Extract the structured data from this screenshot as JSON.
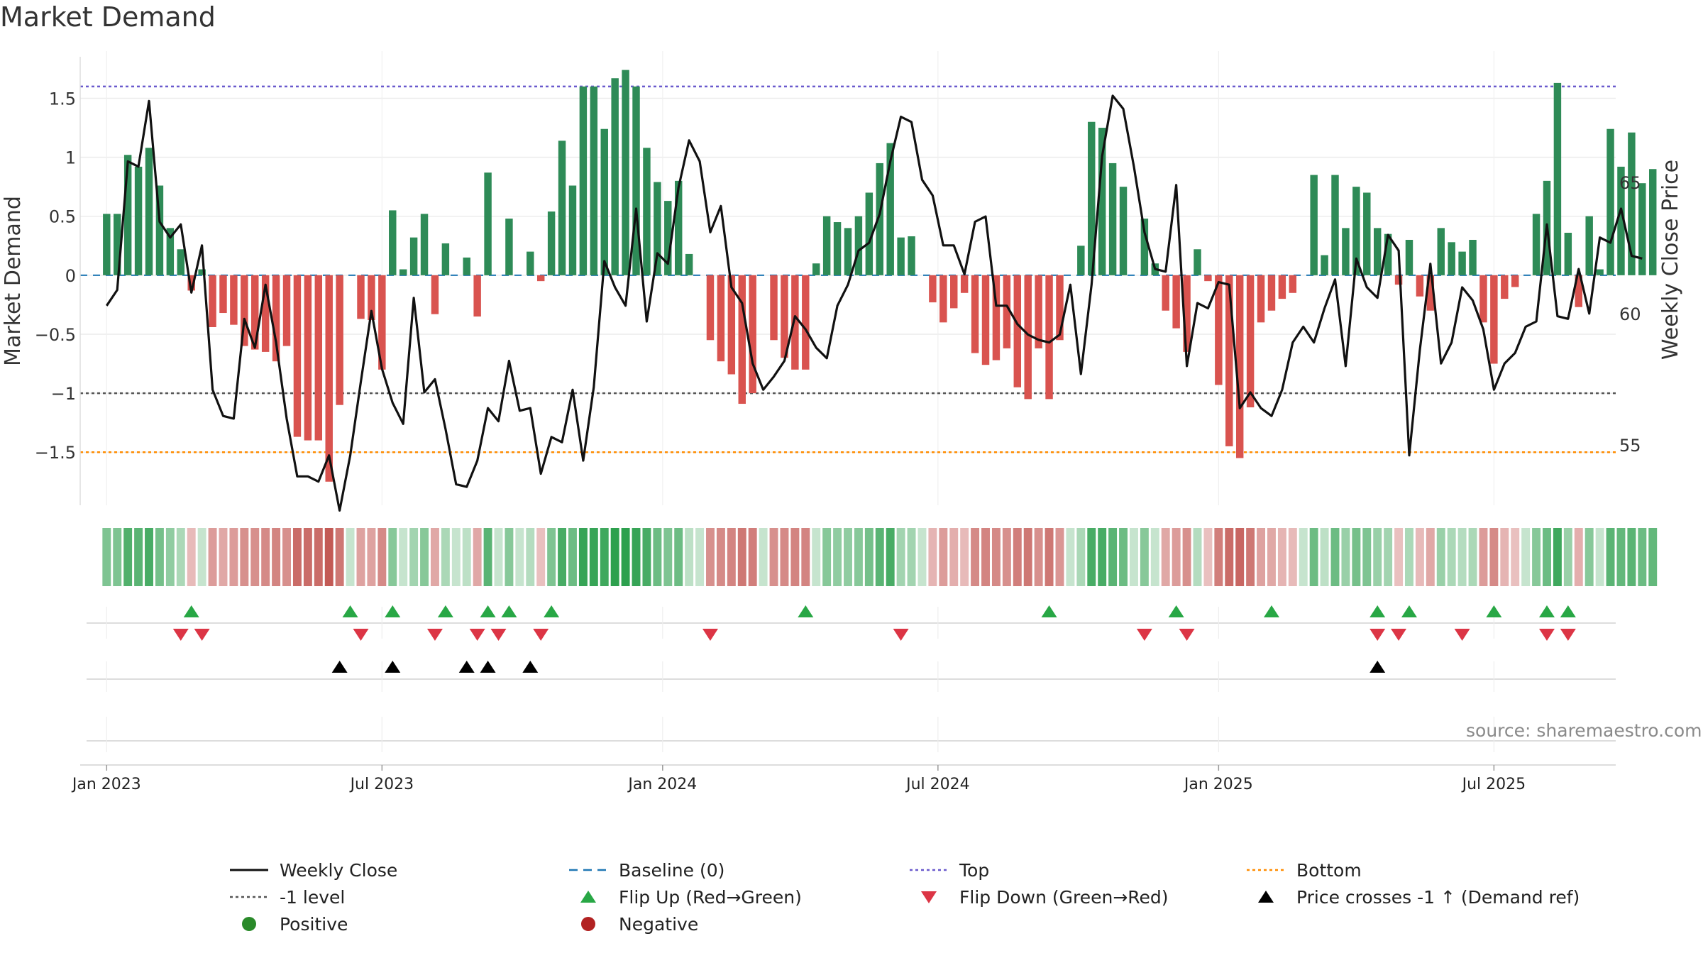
{
  "title": "Market Demand",
  "source": "source: sharemaestro.com",
  "colors": {
    "positive_bar": "#2e8b57",
    "negative_bar": "#d9534f",
    "weekly_close": "#111111",
    "baseline": "#1f77b4",
    "top": "#6a5acd",
    "bottom": "#ff8c00",
    "minus_one": "#555555",
    "flip_up": "#28a745",
    "flip_down": "#dc3545",
    "price_cross": "#000000",
    "positive_dot": "#2a8a2a",
    "negative_dot": "#b22222"
  },
  "legend": [
    {
      "label": "Weekly Close",
      "icon": "solid-line",
      "color": "#111111"
    },
    {
      "label": "Baseline (0)",
      "icon": "dashed-line",
      "color": "#1f77b4"
    },
    {
      "label": "Top",
      "icon": "dotted-line",
      "color": "#6a5acd"
    },
    {
      "label": "Bottom",
      "icon": "dotted-line",
      "color": "#ff8c00"
    },
    {
      "label": "-1 level",
      "icon": "dotted-line",
      "color": "#555555"
    },
    {
      "label": "Flip Up (Red→Green)",
      "icon": "triangle-up",
      "color": "#28a745"
    },
    {
      "label": "Flip Down (Green→Red)",
      "icon": "triangle-down",
      "color": "#dc3545"
    },
    {
      "label": "Price crosses -1 ↑ (Demand ref)",
      "icon": "triangle-up",
      "color": "#000000"
    },
    {
      "label": "Positive",
      "icon": "dot",
      "color": "#2a8a2a"
    },
    {
      "label": "Negative",
      "icon": "dot",
      "color": "#b22222"
    }
  ],
  "chart_data": {
    "type": "bar",
    "title": "Market Demand",
    "ylabel_left": "Market Demand",
    "ylabel_right": "Weekly Close Price",
    "ylim_left": [
      -1.95,
      1.9
    ],
    "ylim_right": [
      52.7,
      70
    ],
    "yticks_left": [
      1.5,
      1,
      0.5,
      0,
      -0.5,
      -1,
      -1.5
    ],
    "ytick_labels_left": [
      "1.5",
      "1",
      "0.5",
      "0",
      "−0.5",
      "−1",
      "−1.5"
    ],
    "yticks_right": [
      65,
      60,
      55
    ],
    "ytick_labels_right": [
      "65",
      "60",
      "55"
    ],
    "x_start_index": -2.5,
    "x_end_index": 142.5,
    "x_ticks": [
      {
        "label": "Jan 2023",
        "index": 0
      },
      {
        "label": "Jul 2023",
        "index": 26
      },
      {
        "label": "Jan 2024",
        "index": 52.5
      },
      {
        "label": "Jul 2024",
        "index": 78.5
      },
      {
        "label": "Jan 2025",
        "index": 105
      },
      {
        "label": "Jul 2025",
        "index": 131
      }
    ],
    "reference_lines": {
      "top": 1.6,
      "bottom": -1.5,
      "minus_one": -1.0,
      "baseline": 0
    },
    "demand": [
      0.52,
      0.52,
      1.02,
      0.92,
      1.08,
      0.76,
      0.4,
      0.22,
      -0.13,
      0.05,
      -0.44,
      -0.32,
      -0.42,
      -0.6,
      -0.63,
      -0.65,
      -0.73,
      -0.6,
      -1.37,
      -1.4,
      -1.4,
      -1.75,
      -1.1,
      0.0,
      -0.37,
      -0.38,
      -0.8,
      0.55,
      0.05,
      0.32,
      0.52,
      -0.33,
      0.27,
      0.0,
      0.15,
      -0.35,
      0.87,
      0.0,
      0.48,
      0.0,
      0.2,
      -0.05,
      0.54,
      1.14,
      0.76,
      1.6,
      1.6,
      1.24,
      1.67,
      1.74,
      1.6,
      1.08,
      0.79,
      0.63,
      0.8,
      0.18,
      0.0,
      -0.55,
      -0.73,
      -0.84,
      -1.09,
      -1.0,
      0.0,
      -0.55,
      -0.7,
      -0.8,
      -0.8,
      0.1,
      0.5,
      0.45,
      0.4,
      0.5,
      0.7,
      0.95,
      1.12,
      0.32,
      0.33,
      0.0,
      -0.23,
      -0.4,
      -0.28,
      -0.15,
      -0.66,
      -0.76,
      -0.72,
      -0.62,
      -0.95,
      -1.05,
      -0.62,
      -1.05,
      -0.55,
      0.0,
      0.25,
      1.3,
      1.25,
      0.95,
      0.75,
      0.0,
      0.48,
      0.1,
      -0.3,
      -0.45,
      -0.65,
      0.22,
      -0.05,
      -0.93,
      -1.45,
      -1.55,
      -1.12,
      -0.4,
      -0.3,
      -0.2,
      -0.15,
      0.0,
      0.85,
      0.17,
      0.85,
      0.4,
      0.75,
      0.7,
      0.4,
      0.35,
      -0.08,
      0.3,
      -0.18,
      -0.3,
      0.4,
      0.28,
      0.2,
      0.3,
      -0.4,
      -0.75,
      -0.2,
      -0.1,
      0.0,
      0.52,
      0.8,
      1.63,
      0.36,
      -0.27,
      0.5,
      0.05,
      1.24,
      0.92,
      1.21,
      0.78,
      0.9
    ],
    "weekly_close": [
      60.3,
      60.9,
      65.8,
      65.6,
      68.1,
      63.5,
      62.9,
      63.4,
      60.8,
      62.6,
      57.1,
      56.1,
      56.0,
      59.8,
      58.7,
      61.1,
      58.9,
      56.0,
      53.8,
      53.8,
      53.6,
      54.6,
      52.5,
      54.6,
      57.4,
      60.1,
      57.9,
      56.6,
      55.8,
      60.6,
      57.0,
      57.5,
      55.6,
      53.5,
      53.4,
      54.4,
      56.4,
      55.9,
      58.2,
      56.3,
      56.4,
      53.9,
      55.3,
      55.1,
      57.1,
      54.4,
      57.2,
      62.0,
      61.0,
      60.3,
      64.0,
      59.7,
      62.3,
      61.9,
      64.8,
      66.6,
      65.8,
      63.1,
      64.1,
      61.0,
      60.4,
      58.1,
      57.1,
      57.6,
      58.2,
      59.9,
      59.4,
      58.7,
      58.3,
      60.3,
      61.1,
      62.4,
      62.7,
      63.8,
      65.8,
      67.5,
      67.3,
      65.1,
      64.5,
      62.6,
      62.6,
      61.5,
      63.5,
      63.7,
      60.3,
      60.3,
      59.6,
      59.2,
      59.0,
      58.9,
      59.2,
      61.1,
      57.7,
      61.1,
      66.0,
      68.3,
      67.8,
      65.6,
      63.1,
      61.7,
      61.6,
      64.9,
      58.0,
      60.4,
      60.2,
      61.2,
      61.1,
      56.4,
      57.0,
      56.4,
      56.1,
      57.1,
      58.9,
      59.5,
      58.9,
      60.2,
      61.3,
      58.0,
      62.1,
      61.0,
      60.6,
      63.0,
      62.4,
      54.6,
      58.6,
      61.9,
      58.1,
      58.9,
      61.0,
      60.5,
      59.4,
      57.1,
      58.1,
      58.5,
      59.5,
      59.7,
      63.4,
      59.9,
      59.8,
      61.7,
      60.0,
      62.9,
      62.7,
      64.0,
      62.2,
      62.1
    ],
    "strength_strip": [
      0.55,
      0.55,
      0.8,
      0.75,
      0.85,
      0.6,
      0.45,
      0.3,
      -0.2,
      0.1,
      -0.45,
      -0.35,
      -0.45,
      -0.55,
      -0.55,
      -0.6,
      -0.65,
      -0.55,
      -0.85,
      -0.85,
      -0.85,
      -1.0,
      -0.75,
      0.05,
      -0.4,
      -0.4,
      -0.6,
      0.5,
      0.1,
      0.35,
      0.5,
      -0.35,
      0.3,
      0.05,
      0.2,
      -0.35,
      0.75,
      0.05,
      0.5,
      0.05,
      0.25,
      -0.1,
      0.55,
      0.85,
      0.65,
      0.95,
      0.95,
      0.9,
      1.0,
      1.0,
      0.95,
      0.85,
      0.65,
      0.55,
      0.65,
      0.2,
      0.05,
      -0.55,
      -0.6,
      -0.65,
      -0.75,
      -0.7,
      0.05,
      -0.55,
      -0.6,
      -0.65,
      -0.65,
      0.15,
      0.5,
      0.45,
      0.45,
      0.5,
      0.6,
      0.75,
      0.85,
      0.35,
      0.35,
      0.05,
      -0.25,
      -0.45,
      -0.3,
      -0.2,
      -0.6,
      -0.65,
      -0.6,
      -0.55,
      -0.7,
      -0.75,
      -0.55,
      -0.75,
      -0.5,
      0.05,
      0.3,
      0.85,
      0.85,
      0.75,
      0.65,
      0.05,
      0.5,
      0.15,
      -0.35,
      -0.45,
      -0.55,
      0.25,
      -0.1,
      -0.7,
      -0.85,
      -0.9,
      -0.75,
      -0.4,
      -0.35,
      -0.25,
      -0.2,
      0.05,
      0.65,
      0.2,
      0.65,
      0.4,
      0.6,
      0.55,
      0.4,
      0.35,
      -0.1,
      0.3,
      -0.2,
      -0.35,
      0.4,
      0.3,
      0.25,
      0.3,
      -0.45,
      -0.6,
      -0.25,
      -0.15,
      0.05,
      0.5,
      0.65,
      0.9,
      0.4,
      -0.3,
      0.5,
      0.1,
      0.75,
      0.7,
      0.75,
      0.65,
      0.7
    ],
    "flip_up_indices": [
      8,
      23,
      27,
      32,
      36,
      38,
      42,
      66,
      89,
      101,
      110,
      120,
      123,
      131,
      136,
      138
    ],
    "flip_down_indices": [
      7,
      9,
      24,
      31,
      35,
      37,
      41,
      57,
      75,
      98,
      102,
      120,
      122,
      128,
      136,
      138
    ],
    "price_cross_indices": [
      22,
      27,
      34,
      36,
      40,
      120
    ]
  }
}
